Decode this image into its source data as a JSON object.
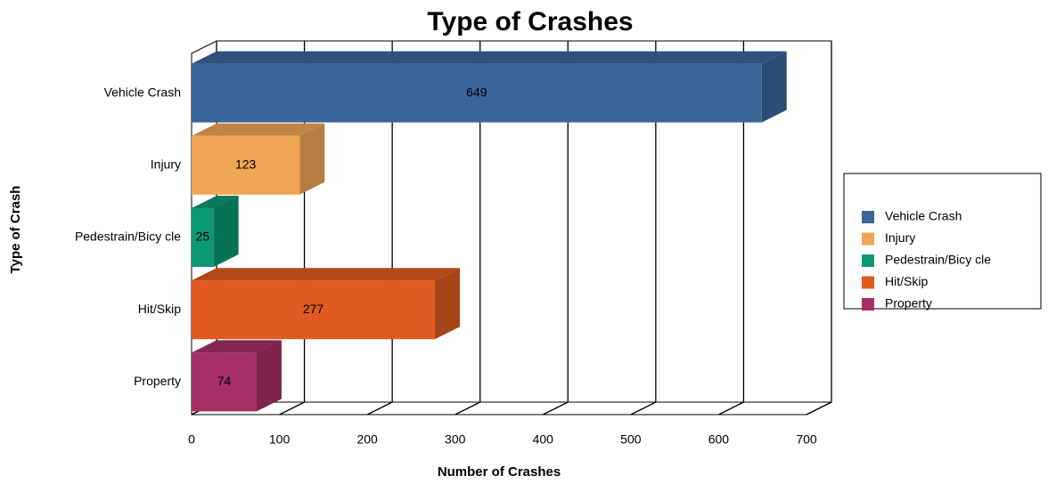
{
  "chart_data": {
    "type": "bar",
    "orientation": "horizontal",
    "title": "Type of Crashes",
    "x_label": "Number of Crashes",
    "y_label": "Type of Crash",
    "categories": [
      "Vehicle Crash",
      "Injury",
      "Pedestrain/Bicy cle",
      "Hit/Skip",
      "Property"
    ],
    "values": [
      649,
      123,
      25,
      277,
      74
    ],
    "colors": [
      "#3b6699",
      "#f0a555",
      "#0b9873",
      "#e05a21",
      "#a62f67"
    ],
    "xlim": [
      0,
      700
    ],
    "xticks": [
      0,
      100,
      200,
      300,
      400,
      500,
      600,
      700
    ],
    "grid": true,
    "legend": "right"
  }
}
